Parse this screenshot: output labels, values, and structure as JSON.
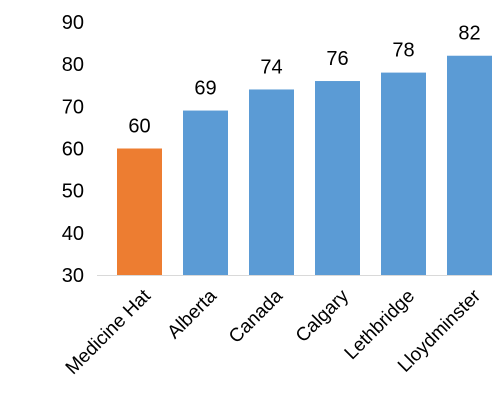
{
  "chart_data": {
    "type": "bar",
    "title": "",
    "xlabel": "",
    "ylabel": "",
    "categories": [
      "Medicine Hat",
      "Alberta",
      "Canada",
      "Calgary",
      "Lethbridge",
      "Lloydminster"
    ],
    "values": [
      60,
      69,
      74,
      76,
      78,
      82
    ],
    "value_labels": [
      "60",
      "69",
      "74",
      "76",
      "78",
      "82"
    ],
    "bar_colors": [
      "#ED7D31",
      "#5B9BD5",
      "#5B9BD5",
      "#5B9BD5",
      "#5B9BD5",
      "#5B9BD5"
    ],
    "ylim": [
      30,
      90
    ],
    "yticks": [
      30,
      40,
      50,
      60,
      70,
      80,
      90
    ],
    "ytick_labels": [
      "30",
      "40",
      "50",
      "60",
      "70",
      "80",
      "90"
    ],
    "grid": false,
    "legend": "none"
  }
}
